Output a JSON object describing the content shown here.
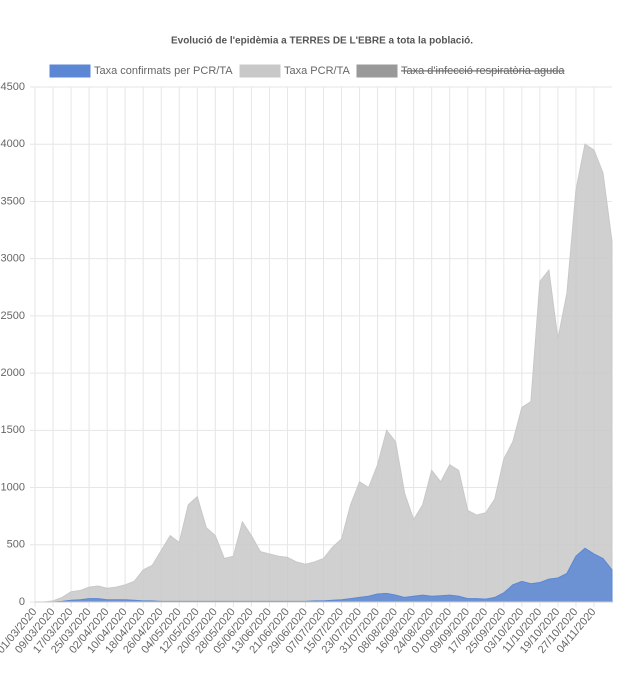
{
  "chart_data": {
    "type": "area",
    "title": "Evolució de l'epidèmia a TERRES DE L'EBRE a tota la població.",
    "categories": [
      "01/03/2020",
      null,
      "09/03/2020",
      null,
      "17/03/2020",
      null,
      "25/03/2020",
      null,
      "02/04/2020",
      null,
      "10/04/2020",
      null,
      "18/04/2020",
      null,
      "26/04/2020",
      null,
      "04/05/2020",
      null,
      "12/05/2020",
      null,
      "20/05/2020",
      null,
      "28/05/2020",
      null,
      "05/06/2020",
      null,
      "13/06/2020",
      null,
      "21/06/2020",
      null,
      "29/06/2020",
      null,
      "07/07/2020",
      null,
      "15/07/2020",
      null,
      "23/07/2020",
      null,
      "31/07/2020",
      null,
      "08/08/2020",
      null,
      "16/08/2020",
      null,
      "24/08/2020",
      null,
      "01/09/2020",
      null,
      "09/09/2020",
      null,
      "17/09/2020",
      null,
      "25/09/2020",
      null,
      "03/10/2020",
      null,
      "11/10/2020",
      null,
      "19/10/2020",
      null,
      "27/10/2020",
      null,
      "04/11/2020",
      null,
      null
    ],
    "series": [
      {
        "name": "Taxa confirmats per PCR/TA",
        "color": "#5b87d4",
        "values": [
          0,
          0,
          0,
          5,
          15,
          20,
          30,
          30,
          20,
          20,
          20,
          15,
          10,
          10,
          5,
          5,
          5,
          5,
          5,
          5,
          5,
          5,
          5,
          5,
          5,
          5,
          5,
          5,
          5,
          5,
          5,
          10,
          10,
          15,
          20,
          30,
          40,
          50,
          70,
          75,
          60,
          40,
          50,
          60,
          50,
          55,
          60,
          50,
          30,
          30,
          25,
          40,
          80,
          150,
          180,
          160,
          170,
          200,
          210,
          250,
          400,
          470,
          420,
          380,
          280
        ]
      },
      {
        "name": "Taxa PCR/TA",
        "color": "#c8c8c8",
        "values": [
          0,
          0,
          10,
          40,
          90,
          100,
          130,
          140,
          120,
          130,
          150,
          180,
          280,
          320,
          450,
          580,
          520,
          850,
          920,
          650,
          580,
          380,
          400,
          700,
          580,
          440,
          420,
          400,
          390,
          350,
          330,
          350,
          380,
          480,
          550,
          850,
          1050,
          1000,
          1200,
          1500,
          1400,
          950,
          720,
          850,
          1150,
          1050,
          1200,
          1150,
          800,
          760,
          780,
          900,
          1250,
          1400,
          1700,
          1750,
          2800,
          2900,
          2300,
          2700,
          3600,
          4000,
          3950,
          3750,
          3150
        ]
      }
    ],
    "hidden_series": [
      {
        "name": "Taxa d'infecció respiratòria aguda",
        "color": "#999999"
      }
    ],
    "ylim": [
      0,
      4500
    ],
    "yticks": [
      0,
      500,
      1000,
      1500,
      2000,
      2500,
      3000,
      3500,
      4000,
      4500
    ],
    "grid": true,
    "legend": "top"
  }
}
